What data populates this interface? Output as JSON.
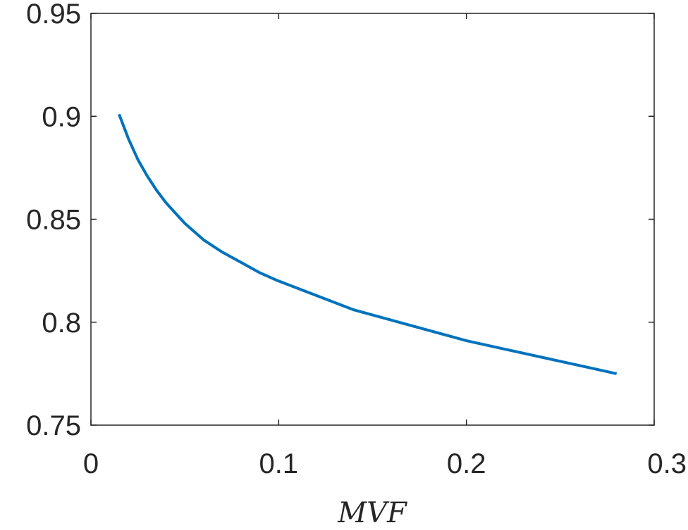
{
  "chart_data": {
    "type": "line",
    "title": "",
    "xlabel": "MVF",
    "ylabel": "",
    "xlim": [
      0,
      0.3
    ],
    "ylim": [
      0.75,
      0.95
    ],
    "x_ticks": [
      0,
      0.1,
      0.2,
      0.3
    ],
    "x_tick_labels": [
      "0",
      "0.1",
      "0.2",
      "0.3"
    ],
    "y_ticks": [
      0.75,
      0.8,
      0.85,
      0.9,
      0.95
    ],
    "y_tick_labels": [
      "0.75",
      "0.8",
      "0.85",
      "0.9",
      "0.95"
    ],
    "grid": false,
    "legend": "none",
    "series": [
      {
        "color": "#0072bd",
        "x": [
          0.015,
          0.02,
          0.025,
          0.03,
          0.035,
          0.04,
          0.05,
          0.06,
          0.07,
          0.08,
          0.09,
          0.1,
          0.12,
          0.14,
          0.16,
          0.18,
          0.2,
          0.22,
          0.24,
          0.26,
          0.28
        ],
        "y": [
          0.901,
          0.889,
          0.879,
          0.871,
          0.864,
          0.858,
          0.848,
          0.84,
          0.834,
          0.829,
          0.824,
          0.82,
          0.813,
          0.806,
          0.801,
          0.796,
          0.791,
          0.787,
          0.783,
          0.779,
          0.775
        ]
      }
    ]
  }
}
